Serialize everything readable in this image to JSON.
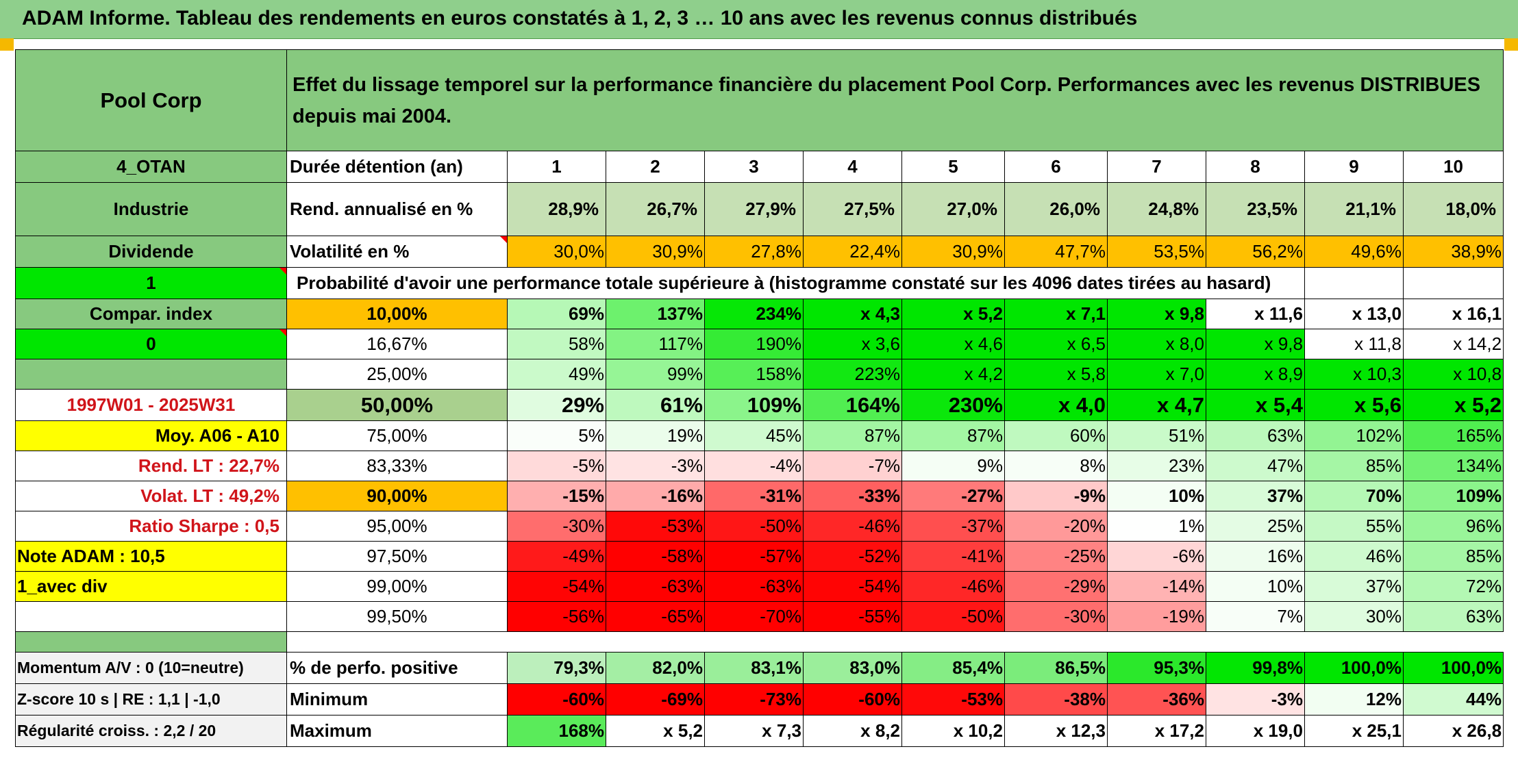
{
  "title": "ADAM Informe. Tableau des rendements en euros constatés à 1, 2, 3 … 10 ans avec les revenus connus distribués",
  "colors": {
    "header_green": "#87c97f",
    "bright_green": "#00e600",
    "orange": "#ffc000",
    "yellow": "#ffff00",
    "red_text": "#d0141a"
  },
  "left": {
    "name": "Pool Corp",
    "region": "4_OTAN",
    "sector": "Industrie",
    "type": "Dividende",
    "compar_value": "1",
    "compar_label": "Compar. index",
    "zero_value": "0",
    "period": "1997W01 - 2025W31",
    "moy": "Moy. A06 - A10",
    "rend_lt": "Rend. LT :   22,7%",
    "volat_lt": "Volat. LT :   49,2%",
    "sharpe": "Ratio Sharpe :    0,5",
    "note": "Note ADAM : 10,5",
    "avec_div": "1_avec div",
    "momentum": "Momentum A/V : 0 (10=neutre)",
    "zscore": "Z-score 10 s | RE : 1,1 | -1,0",
    "regularite": "Régularité croiss. : 2,2 / 20"
  },
  "header": {
    "description": "Effet du lissage temporel sur la performance financière du placement Pool Corp. Performances avec les revenus DISTRIBUES depuis mai 2004.",
    "duration_label": "Durée détention (an)",
    "years": [
      "1",
      "2",
      "3",
      "4",
      "5",
      "6",
      "7",
      "8",
      "9",
      "10"
    ],
    "rend_label": "Rend. annualisé en %",
    "rend": [
      "28,9%",
      "26,7%",
      "27,9%",
      "27,5%",
      "27,0%",
      "26,0%",
      "24,8%",
      "23,5%",
      "21,1%",
      "18,0%"
    ],
    "vol_label": "Volatilité en %",
    "vol": [
      "30,0%",
      "30,9%",
      "27,8%",
      "22,4%",
      "30,9%",
      "47,7%",
      "53,5%",
      "56,2%",
      "49,6%",
      "38,9%"
    ],
    "proba_label": "Probabilité d'avoir une performance totale supérieure à (histogramme constaté sur les 4096 dates tirées au hasard)"
  },
  "percentiles": [
    {
      "p": "10,00%",
      "values": [
        "69%",
        "137%",
        "234%",
        "x 4,3",
        "x 5,2",
        "x 7,1",
        "x 9,8",
        "x 11,6",
        "x 13,0",
        "x 16,1"
      ]
    },
    {
      "p": "16,67%",
      "values": [
        "58%",
        "117%",
        "190%",
        "x 3,6",
        "x 4,6",
        "x 6,5",
        "x 8,0",
        "x 9,8",
        "x 11,8",
        "x 14,2"
      ]
    },
    {
      "p": "25,00%",
      "values": [
        "49%",
        "99%",
        "158%",
        "223%",
        "x 4,2",
        "x 5,8",
        "x 7,0",
        "x 8,9",
        "x 10,3",
        "x 10,8"
      ]
    },
    {
      "p": "50,00%",
      "values": [
        "29%",
        "61%",
        "109%",
        "164%",
        "230%",
        "x 4,0",
        "x 4,7",
        "x 5,4",
        "x 5,6",
        "x 5,2"
      ]
    },
    {
      "p": "75,00%",
      "values": [
        "5%",
        "19%",
        "45%",
        "87%",
        "87%",
        "60%",
        "51%",
        "63%",
        "102%",
        "165%"
      ]
    },
    {
      "p": "83,33%",
      "values": [
        "-5%",
        "-3%",
        "-4%",
        "-7%",
        "9%",
        "8%",
        "23%",
        "47%",
        "85%",
        "134%"
      ]
    },
    {
      "p": "90,00%",
      "values": [
        "-15%",
        "-16%",
        "-31%",
        "-33%",
        "-27%",
        "-9%",
        "10%",
        "37%",
        "70%",
        "109%"
      ]
    },
    {
      "p": "95,00%",
      "values": [
        "-30%",
        "-53%",
        "-50%",
        "-46%",
        "-37%",
        "-20%",
        "1%",
        "25%",
        "55%",
        "96%"
      ]
    },
    {
      "p": "97,50%",
      "values": [
        "-49%",
        "-58%",
        "-57%",
        "-52%",
        "-41%",
        "-25%",
        "-6%",
        "16%",
        "46%",
        "85%"
      ]
    },
    {
      "p": "99,00%",
      "values": [
        "-54%",
        "-63%",
        "-63%",
        "-54%",
        "-46%",
        "-29%",
        "-14%",
        "10%",
        "37%",
        "72%"
      ]
    },
    {
      "p": "99,50%",
      "values": [
        "-56%",
        "-65%",
        "-70%",
        "-55%",
        "-50%",
        "-30%",
        "-19%",
        "7%",
        "30%",
        "63%"
      ]
    }
  ],
  "stats": [
    {
      "label": "% de perfo. positive",
      "values": [
        "79,3%",
        "82,0%",
        "83,1%",
        "83,0%",
        "85,4%",
        "86,5%",
        "95,3%",
        "99,8%",
        "100,0%",
        "100,0%"
      ]
    },
    {
      "label": "Minimum",
      "values": [
        "-60%",
        "-69%",
        "-73%",
        "-60%",
        "-53%",
        "-38%",
        "-36%",
        "-3%",
        "12%",
        "44%"
      ]
    },
    {
      "label": "Maximum",
      "values": [
        "168%",
        "x 5,2",
        "x 7,3",
        "x 8,2",
        "x 10,2",
        "x 12,3",
        "x 17,2",
        "x 19,0",
        "x 25,1",
        "x 26,8"
      ]
    }
  ]
}
